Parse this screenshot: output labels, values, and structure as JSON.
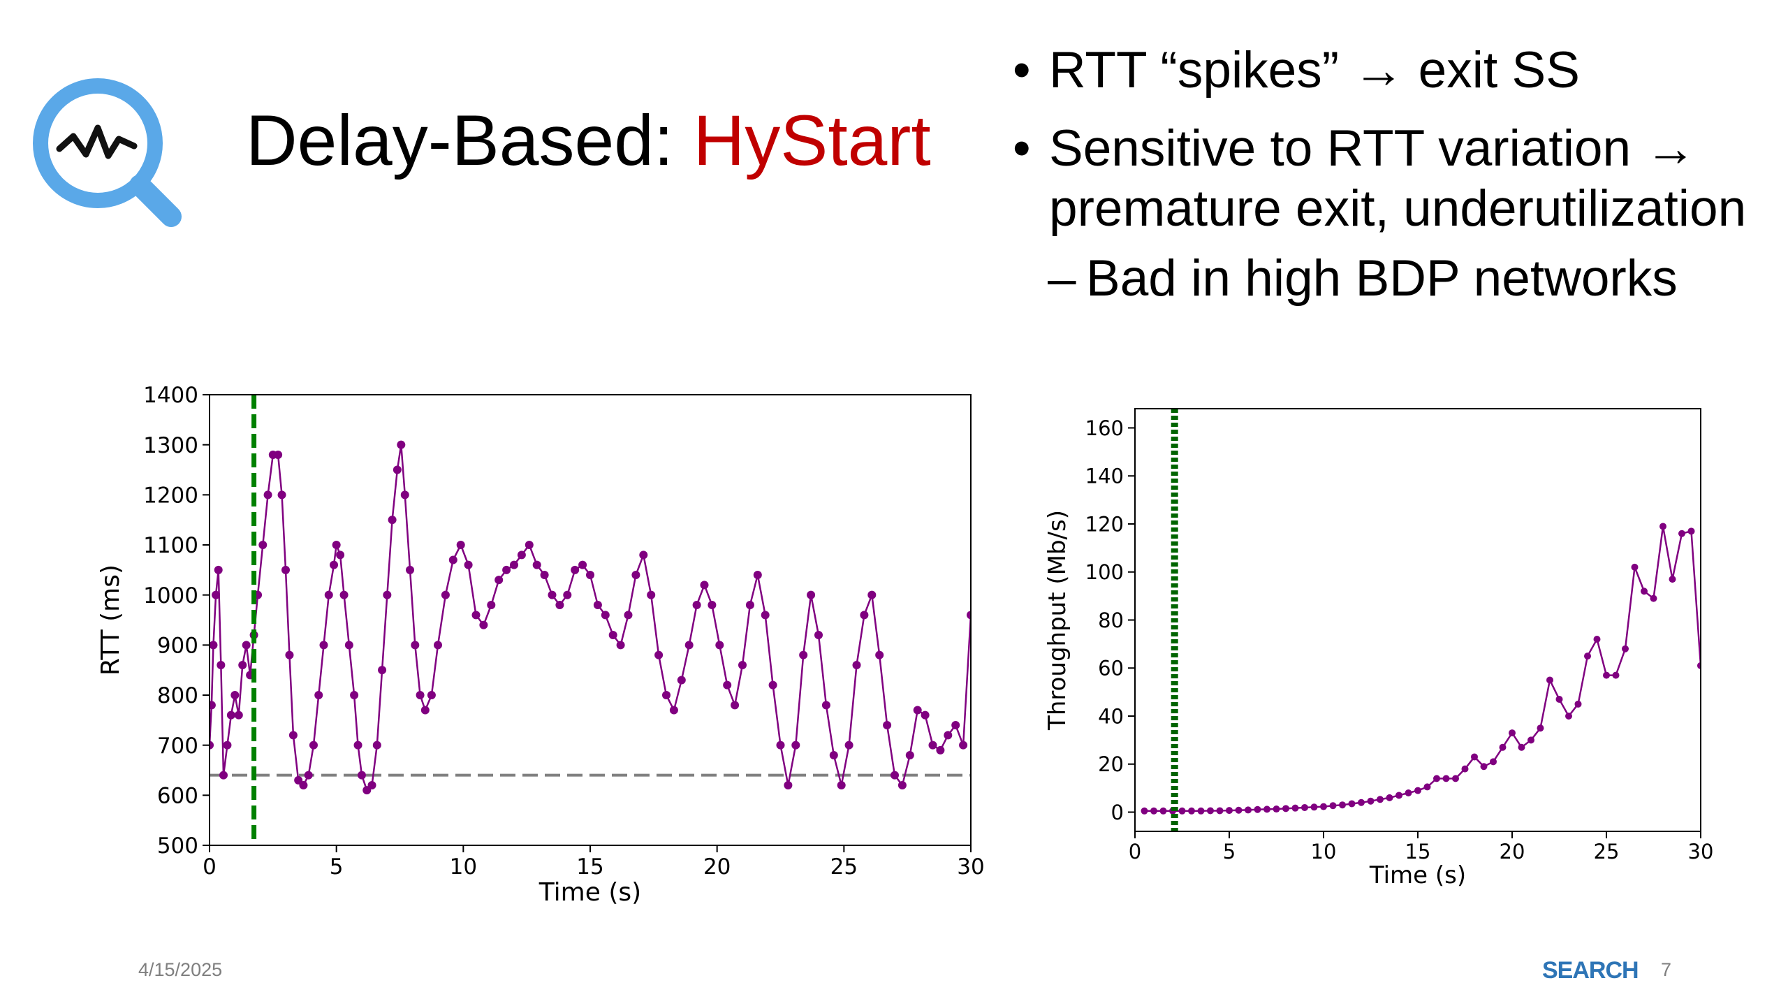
{
  "slide": {
    "title_prefix": "Delay-Based: ",
    "title_accent": "HyStart",
    "accent_color": "#c00000",
    "logo_icon": "magnifier-heartbeat-icon",
    "bullets": [
      {
        "text": "RTT “spikes” → exit SS"
      },
      {
        "text": "Sensitive to RTT variation → premature exit, underutilization"
      }
    ],
    "sub_bullet": "Bad in high BDP networks",
    "footer_date": "4/15/2025",
    "footer_brand": "SEARCH",
    "page_number": "7"
  },
  "chart_data": [
    {
      "type": "scatter",
      "xlabel": "Time (s)",
      "ylabel": "RTT (ms)",
      "xlim": [
        0,
        30
      ],
      "ylim": [
        500,
        1400
      ],
      "x_ticks": [
        0,
        5,
        10,
        15,
        20,
        25,
        30
      ],
      "y_ticks": [
        500,
        600,
        700,
        800,
        900,
        1000,
        1100,
        1200,
        1300,
        1400
      ],
      "grid": false,
      "series_color": "#800080",
      "baseline": {
        "y": 640,
        "color": "#808080",
        "style": "dashed"
      },
      "vertical_marker": {
        "x": 1.75,
        "color": "#008000",
        "style": "dashed"
      },
      "series": [
        {
          "points": [
            [
              0,
              700
            ],
            [
              0.08,
              780
            ],
            [
              0.15,
              900
            ],
            [
              0.25,
              1000
            ],
            [
              0.35,
              1050
            ],
            [
              0.45,
              860
            ],
            [
              0.55,
              640
            ],
            [
              0.7,
              700
            ],
            [
              0.85,
              760
            ],
            [
              1.0,
              800
            ],
            [
              1.15,
              760
            ],
            [
              1.3,
              860
            ],
            [
              1.45,
              900
            ],
            [
              1.6,
              840
            ],
            [
              1.75,
              920
            ],
            [
              1.9,
              1000
            ],
            [
              2.1,
              1100
            ],
            [
              2.3,
              1200
            ],
            [
              2.5,
              1280
            ],
            [
              2.7,
              1280
            ],
            [
              2.85,
              1200
            ],
            [
              3.0,
              1050
            ],
            [
              3.15,
              880
            ],
            [
              3.3,
              720
            ],
            [
              3.5,
              630
            ],
            [
              3.7,
              620
            ],
            [
              3.9,
              640
            ],
            [
              4.1,
              700
            ],
            [
              4.3,
              800
            ],
            [
              4.5,
              900
            ],
            [
              4.7,
              1000
            ],
            [
              4.9,
              1060
            ],
            [
              5.0,
              1100
            ],
            [
              5.15,
              1080
            ],
            [
              5.3,
              1000
            ],
            [
              5.5,
              900
            ],
            [
              5.7,
              800
            ],
            [
              5.85,
              700
            ],
            [
              6.0,
              640
            ],
            [
              6.2,
              610
            ],
            [
              6.4,
              620
            ],
            [
              6.6,
              700
            ],
            [
              6.8,
              850
            ],
            [
              7.0,
              1000
            ],
            [
              7.2,
              1150
            ],
            [
              7.4,
              1250
            ],
            [
              7.55,
              1300
            ],
            [
              7.7,
              1200
            ],
            [
              7.9,
              1050
            ],
            [
              8.1,
              900
            ],
            [
              8.3,
              800
            ],
            [
              8.5,
              770
            ],
            [
              8.75,
              800
            ],
            [
              9.0,
              900
            ],
            [
              9.3,
              1000
            ],
            [
              9.6,
              1070
            ],
            [
              9.9,
              1100
            ],
            [
              10.2,
              1060
            ],
            [
              10.5,
              960
            ],
            [
              10.8,
              940
            ],
            [
              11.1,
              980
            ],
            [
              11.4,
              1030
            ],
            [
              11.7,
              1050
            ],
            [
              12.0,
              1060
            ],
            [
              12.3,
              1080
            ],
            [
              12.6,
              1100
            ],
            [
              12.9,
              1060
            ],
            [
              13.2,
              1040
            ],
            [
              13.5,
              1000
            ],
            [
              13.8,
              980
            ],
            [
              14.1,
              1000
            ],
            [
              14.4,
              1050
            ],
            [
              14.7,
              1060
            ],
            [
              15.0,
              1040
            ],
            [
              15.3,
              980
            ],
            [
              15.6,
              960
            ],
            [
              15.9,
              920
            ],
            [
              16.2,
              900
            ],
            [
              16.5,
              960
            ],
            [
              16.8,
              1040
            ],
            [
              17.1,
              1080
            ],
            [
              17.4,
              1000
            ],
            [
              17.7,
              880
            ],
            [
              18.0,
              800
            ],
            [
              18.3,
              770
            ],
            [
              18.6,
              830
            ],
            [
              18.9,
              900
            ],
            [
              19.2,
              980
            ],
            [
              19.5,
              1020
            ],
            [
              19.8,
              980
            ],
            [
              20.1,
              900
            ],
            [
              20.4,
              820
            ],
            [
              20.7,
              780
            ],
            [
              21.0,
              860
            ],
            [
              21.3,
              980
            ],
            [
              21.6,
              1040
            ],
            [
              21.9,
              960
            ],
            [
              22.2,
              820
            ],
            [
              22.5,
              700
            ],
            [
              22.8,
              620
            ],
            [
              23.1,
              700
            ],
            [
              23.4,
              880
            ],
            [
              23.7,
              1000
            ],
            [
              24.0,
              920
            ],
            [
              24.3,
              780
            ],
            [
              24.6,
              680
            ],
            [
              24.9,
              620
            ],
            [
              25.2,
              700
            ],
            [
              25.5,
              860
            ],
            [
              25.8,
              960
            ],
            [
              26.1,
              1000
            ],
            [
              26.4,
              880
            ],
            [
              26.7,
              740
            ],
            [
              27.0,
              640
            ],
            [
              27.3,
              620
            ],
            [
              27.6,
              680
            ],
            [
              27.9,
              770
            ],
            [
              28.2,
              760
            ],
            [
              28.5,
              700
            ],
            [
              28.8,
              690
            ],
            [
              29.1,
              720
            ],
            [
              29.4,
              740
            ],
            [
              29.7,
              700
            ],
            [
              30.0,
              960
            ]
          ]
        }
      ]
    },
    {
      "type": "line",
      "xlabel": "Time (s)",
      "ylabel": "Throughput (Mb/s)",
      "xlim": [
        0,
        30
      ],
      "ylim": [
        -8,
        168
      ],
      "x_ticks": [
        0,
        5,
        10,
        15,
        20,
        25,
        30
      ],
      "y_ticks": [
        0,
        20,
        40,
        60,
        80,
        100,
        120,
        140,
        160
      ],
      "grid": false,
      "series_color": "#800080",
      "vertical_marker": {
        "x": 2.1,
        "color": "#006400",
        "style": "dotted"
      },
      "series": [
        {
          "points": [
            [
              0.5,
              0.5
            ],
            [
              1,
              0.5
            ],
            [
              1.5,
              0.5
            ],
            [
              2,
              0.5
            ],
            [
              2.5,
              0.5
            ],
            [
              3,
              0.5
            ],
            [
              3.5,
              0.5
            ],
            [
              4,
              0.6
            ],
            [
              4.5,
              0.6
            ],
            [
              5,
              0.7
            ],
            [
              5.5,
              0.8
            ],
            [
              6,
              0.9
            ],
            [
              6.5,
              1.1
            ],
            [
              7,
              1.2
            ],
            [
              7.5,
              1.3
            ],
            [
              8,
              1.5
            ],
            [
              8.5,
              1.7
            ],
            [
              9,
              1.9
            ],
            [
              9.5,
              2.1
            ],
            [
              10,
              2.3
            ],
            [
              10.5,
              2.7
            ],
            [
              11,
              3.0
            ],
            [
              11.5,
              3.5
            ],
            [
              12,
              4.0
            ],
            [
              12.5,
              4.6
            ],
            [
              13,
              5.3
            ],
            [
              13.5,
              6.0
            ],
            [
              14,
              7.0
            ],
            [
              14.5,
              8.0
            ],
            [
              15,
              9.0
            ],
            [
              15.5,
              10.5
            ],
            [
              16,
              14
            ],
            [
              16.5,
              14
            ],
            [
              17,
              14
            ],
            [
              17.5,
              18
            ],
            [
              18,
              23
            ],
            [
              18.5,
              19
            ],
            [
              19,
              21
            ],
            [
              19.5,
              27
            ],
            [
              20,
              33
            ],
            [
              20.5,
              27
            ],
            [
              21,
              30
            ],
            [
              21.5,
              35
            ],
            [
              22,
              55
            ],
            [
              22.5,
              47
            ],
            [
              23,
              40
            ],
            [
              23.5,
              45
            ],
            [
              24,
              65
            ],
            [
              24.5,
              72
            ],
            [
              25,
              57
            ],
            [
              25.5,
              57
            ],
            [
              26,
              68
            ],
            [
              26.5,
              102
            ],
            [
              27,
              92
            ],
            [
              27.5,
              89
            ],
            [
              28,
              119
            ],
            [
              28.5,
              97
            ],
            [
              29,
              116
            ],
            [
              29.5,
              117
            ],
            [
              30,
              61
            ]
          ]
        }
      ]
    }
  ]
}
